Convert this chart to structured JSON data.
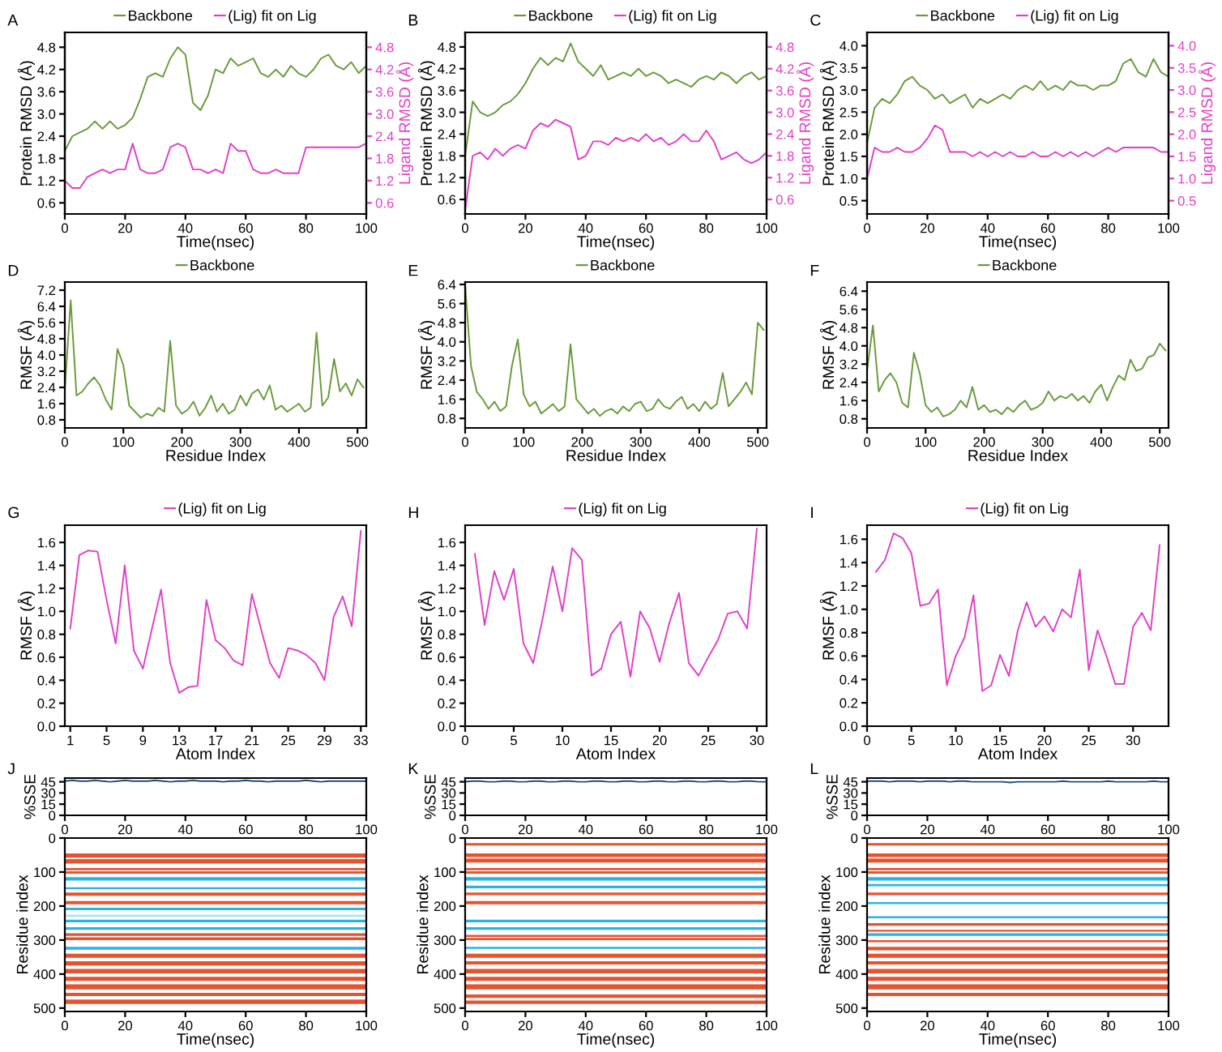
{
  "chart_data": [
    {
      "type": "line",
      "annotations": [
        "A"
      ],
      "xlabel": "Time(nsec)",
      "ylabel": "Protein RMSD (Å)",
      "y2label": "Ligand RMSD (Å)",
      "legend": "top",
      "xlim": [
        0,
        100
      ],
      "xticks": [
        0,
        20,
        40,
        60,
        80,
        100
      ],
      "ylim": [
        0.3,
        5.2
      ],
      "yticks": [
        0.6,
        1.2,
        1.8,
        2.4,
        {
          "value": 3,
          "label": "3.0"
        },
        3.6,
        4.2,
        4.8
      ],
      "y2lim": [
        0.3,
        5.2
      ],
      "y2ticks": [
        0.6,
        1.2,
        1.8,
        2.4,
        {
          "value": 3,
          "label": "3.0"
        },
        3.6,
        4.2,
        4.8
      ],
      "x": [
        0,
        2.5,
        5,
        7.5,
        10,
        12.5,
        15,
        17.5,
        20,
        22.5,
        25,
        27.5,
        30,
        32.5,
        35,
        37.5,
        40,
        42.5,
        45,
        47.5,
        50,
        52.5,
        55,
        57.5,
        60,
        62.5,
        65,
        67.5,
        70,
        72.5,
        75,
        77.5,
        80,
        82.5,
        85,
        87.5,
        90,
        92.5,
        95,
        97.5,
        100
      ],
      "series": [
        {
          "name": "Backbone",
          "color": "#6a9a3a",
          "values": [
            2.0,
            2.4,
            2.5,
            2.6,
            2.8,
            2.6,
            2.8,
            2.6,
            2.7,
            2.9,
            3.4,
            4.0,
            4.1,
            4.0,
            4.5,
            4.8,
            4.6,
            3.3,
            3.1,
            3.5,
            4.2,
            4.1,
            4.5,
            4.3,
            4.4,
            4.5,
            4.1,
            4.0,
            4.2,
            4.0,
            4.3,
            4.1,
            4.0,
            4.2,
            4.5,
            4.6,
            4.3,
            4.2,
            4.4,
            4.1,
            4.3
          ]
        },
        {
          "name": "(Lig) fit on Lig",
          "color": "#e040c8",
          "axis": "y2",
          "values": [
            1.2,
            1.0,
            1.0,
            1.3,
            1.4,
            1.5,
            1.4,
            1.5,
            1.5,
            2.2,
            1.5,
            1.4,
            1.4,
            1.5,
            2.1,
            2.2,
            2.1,
            1.5,
            1.5,
            1.4,
            1.5,
            1.4,
            2.2,
            2.0,
            2.0,
            1.5,
            1.4,
            1.4,
            1.5,
            1.4,
            1.4,
            1.4,
            2.1,
            2.1,
            2.1,
            2.1,
            2.1,
            2.1,
            2.1,
            2.1,
            2.2
          ]
        }
      ]
    },
    {
      "type": "line",
      "annotations": [
        "B"
      ],
      "xlabel": "Time(nsec)",
      "ylabel": "Protein RMSD (Å)",
      "y2label": "Ligand RMSD (Å)",
      "legend": "top",
      "xlim": [
        0,
        100
      ],
      "xticks": [
        0,
        20,
        40,
        60,
        80,
        100
      ],
      "ylim": [
        0.2,
        5.2
      ],
      "yticks": [
        0.6,
        1.2,
        1.8,
        2.4,
        {
          "value": 3,
          "label": "3.0"
        },
        3.6,
        4.2,
        4.8
      ],
      "y2lim": [
        0.2,
        5.2
      ],
      "y2ticks": [
        0.6,
        1.2,
        1.8,
        2.4,
        {
          "value": 3,
          "label": "3.0"
        },
        3.6,
        4.2,
        4.8
      ],
      "x": [
        0,
        2.5,
        5,
        7.5,
        10,
        12.5,
        15,
        17.5,
        20,
        22.5,
        25,
        27.5,
        30,
        32.5,
        35,
        37.5,
        40,
        42.5,
        45,
        47.5,
        50,
        52.5,
        55,
        57.5,
        60,
        62.5,
        65,
        67.5,
        70,
        72.5,
        75,
        77.5,
        80,
        82.5,
        85,
        87.5,
        90,
        92.5,
        95,
        97.5,
        100
      ],
      "series": [
        {
          "name": "Backbone",
          "color": "#6a9a3a",
          "values": [
            1.8,
            3.3,
            3.0,
            2.9,
            3.0,
            3.2,
            3.3,
            3.5,
            3.8,
            4.2,
            4.5,
            4.3,
            4.5,
            4.4,
            4.9,
            4.4,
            4.2,
            4.0,
            4.3,
            3.9,
            4.0,
            4.1,
            4.0,
            4.2,
            4.0,
            4.1,
            4.0,
            3.8,
            3.9,
            3.8,
            3.7,
            3.9,
            4.0,
            3.9,
            4.1,
            4.0,
            3.8,
            4.0,
            4.1,
            3.9,
            4.0
          ]
        },
        {
          "name": "(Lig) fit on Lig",
          "color": "#e040c8",
          "axis": "y2",
          "values": [
            0.3,
            1.8,
            1.9,
            1.7,
            2.0,
            1.8,
            2.0,
            2.1,
            2.0,
            2.5,
            2.7,
            2.6,
            2.8,
            2.7,
            2.6,
            1.7,
            1.8,
            2.2,
            2.2,
            2.1,
            2.3,
            2.2,
            2.3,
            2.2,
            2.4,
            2.2,
            2.3,
            2.1,
            2.2,
            2.4,
            2.2,
            2.2,
            2.5,
            2.2,
            1.7,
            1.8,
            1.9,
            1.7,
            1.6,
            1.7,
            1.9
          ]
        }
      ]
    },
    {
      "type": "line",
      "annotations": [
        "C"
      ],
      "xlabel": "Time(nsec)",
      "ylabel": "Protein RMSD (Å)",
      "y2label": "Ligand RMSD (Å)",
      "legend": "top",
      "xlim": [
        0,
        100
      ],
      "xticks": [
        0,
        20,
        40,
        60,
        80,
        100
      ],
      "ylim": [
        0.2,
        4.3
      ],
      "yticks": [
        0.5,
        {
          "value": 1,
          "label": "1.0"
        },
        1.5,
        {
          "value": 2,
          "label": "2.0"
        },
        2.5,
        {
          "value": 3,
          "label": "3.0"
        },
        3.5,
        {
          "value": 4,
          "label": "4.0"
        }
      ],
      "y2lim": [
        0.2,
        4.3
      ],
      "y2ticks": [
        0.5,
        {
          "value": 1,
          "label": "1.0"
        },
        1.5,
        {
          "value": 2,
          "label": "2.0"
        },
        2.5,
        {
          "value": 3,
          "label": "3.0"
        },
        3.5,
        {
          "value": 4,
          "label": "4.0"
        }
      ],
      "x": [
        0,
        2.5,
        5,
        7.5,
        10,
        12.5,
        15,
        17.5,
        20,
        22.5,
        25,
        27.5,
        30,
        32.5,
        35,
        37.5,
        40,
        42.5,
        45,
        47.5,
        50,
        52.5,
        55,
        57.5,
        60,
        62.5,
        65,
        67.5,
        70,
        72.5,
        75,
        77.5,
        80,
        82.5,
        85,
        87.5,
        90,
        92.5,
        95,
        97.5,
        100
      ],
      "series": [
        {
          "name": "Backbone",
          "color": "#6a9a3a",
          "values": [
            1.8,
            2.6,
            2.8,
            2.7,
            2.9,
            3.2,
            3.3,
            3.1,
            3.0,
            2.8,
            2.9,
            2.7,
            2.8,
            2.9,
            2.6,
            2.8,
            2.7,
            2.8,
            2.9,
            2.8,
            3.0,
            3.1,
            3.0,
            3.2,
            3.0,
            3.1,
            3.0,
            3.2,
            3.1,
            3.1,
            3.0,
            3.1,
            3.1,
            3.2,
            3.6,
            3.7,
            3.4,
            3.3,
            3.7,
            3.4,
            3.3
          ]
        },
        {
          "name": "(Lig) fit on Lig",
          "color": "#e040c8",
          "axis": "y2",
          "values": [
            1.0,
            1.7,
            1.6,
            1.6,
            1.7,
            1.6,
            1.6,
            1.7,
            1.9,
            2.2,
            2.1,
            1.6,
            1.6,
            1.6,
            1.5,
            1.6,
            1.5,
            1.6,
            1.5,
            1.6,
            1.5,
            1.5,
            1.6,
            1.5,
            1.5,
            1.6,
            1.5,
            1.6,
            1.5,
            1.6,
            1.5,
            1.6,
            1.7,
            1.6,
            1.7,
            1.7,
            1.7,
            1.7,
            1.7,
            1.6,
            1.6
          ]
        }
      ]
    },
    {
      "type": "line",
      "annotations": [
        "D"
      ],
      "xlabel": "Residue Index",
      "ylabel": "RMSF (Å)",
      "legend": "top",
      "xlim": [
        0,
        515
      ],
      "xticks": [
        0,
        100,
        200,
        300,
        400,
        500
      ],
      "ylim": [
        0.4,
        7.6
      ],
      "yticks": [
        0.8,
        1.6,
        2.4,
        3.2,
        {
          "value": 4,
          "label": "4.0"
        },
        4.8,
        5.6,
        6.4,
        7.2
      ],
      "x": [
        0,
        10,
        20,
        30,
        40,
        50,
        60,
        70,
        80,
        90,
        100,
        110,
        120,
        130,
        140,
        150,
        160,
        170,
        180,
        190,
        200,
        210,
        220,
        230,
        240,
        250,
        260,
        270,
        280,
        290,
        300,
        310,
        320,
        330,
        340,
        350,
        360,
        370,
        380,
        390,
        400,
        410,
        420,
        430,
        440,
        450,
        460,
        470,
        480,
        490,
        500,
        510
      ],
      "series": [
        {
          "name": "Backbone",
          "color": "#6a9a3a",
          "values": [
            2.3,
            6.7,
            2.0,
            2.2,
            2.6,
            2.9,
            2.5,
            1.8,
            1.3,
            4.3,
            3.5,
            1.5,
            1.2,
            0.9,
            1.1,
            1.0,
            1.4,
            1.2,
            4.7,
            1.5,
            1.1,
            1.3,
            1.7,
            1.0,
            1.4,
            2.0,
            1.2,
            1.6,
            1.1,
            1.3,
            2.0,
            1.5,
            2.1,
            2.3,
            1.8,
            2.5,
            1.3,
            1.5,
            1.2,
            1.4,
            1.6,
            1.2,
            1.4,
            5.1,
            1.5,
            1.9,
            3.8,
            2.2,
            2.6,
            2.0,
            2.8,
            2.4
          ]
        }
      ]
    },
    {
      "type": "line",
      "annotations": [
        "E"
      ],
      "xlabel": "Residue Index",
      "ylabel": "RMSF (Å)",
      "legend": "top",
      "xlim": [
        0,
        515
      ],
      "xticks": [
        0,
        100,
        200,
        300,
        400,
        500
      ],
      "ylim": [
        0.4,
        6.5
      ],
      "yticks": [
        0.8,
        1.6,
        2.4,
        3.2,
        {
          "value": 4,
          "label": "4.0"
        },
        4.8,
        5.6,
        6.4
      ],
      "x": [
        0,
        10,
        20,
        30,
        40,
        50,
        60,
        70,
        80,
        90,
        100,
        110,
        120,
        130,
        140,
        150,
        160,
        170,
        180,
        190,
        200,
        210,
        220,
        230,
        240,
        250,
        260,
        270,
        280,
        290,
        300,
        310,
        320,
        330,
        340,
        350,
        360,
        370,
        380,
        390,
        400,
        410,
        420,
        430,
        440,
        450,
        460,
        470,
        480,
        490,
        500,
        510
      ],
      "series": [
        {
          "name": "Backbone",
          "color": "#6a9a3a",
          "values": [
            6.4,
            3.0,
            1.9,
            1.6,
            1.2,
            1.5,
            1.1,
            1.3,
            3.0,
            4.1,
            1.8,
            1.3,
            1.5,
            1.0,
            1.2,
            1.4,
            1.1,
            1.3,
            3.9,
            1.6,
            1.3,
            1.0,
            1.2,
            0.9,
            1.1,
            1.2,
            1.0,
            1.3,
            1.1,
            1.4,
            1.5,
            1.1,
            1.2,
            1.6,
            1.3,
            1.2,
            1.5,
            1.7,
            1.2,
            1.4,
            1.1,
            1.5,
            1.2,
            1.4,
            2.7,
            1.3,
            1.6,
            1.9,
            2.3,
            1.8,
            4.8,
            4.5
          ]
        }
      ]
    },
    {
      "type": "line",
      "annotations": [
        "F"
      ],
      "xlabel": "Residue Index",
      "ylabel": "RMSF (Å)",
      "legend": "top",
      "xlim": [
        0,
        515
      ],
      "xticks": [
        0,
        100,
        200,
        300,
        400,
        500
      ],
      "ylim": [
        0.4,
        6.8
      ],
      "yticks": [
        0.8,
        1.6,
        2.4,
        3.2,
        {
          "value": 4,
          "label": "4.0"
        },
        4.8,
        5.6,
        6.4
      ],
      "x": [
        0,
        10,
        20,
        30,
        40,
        50,
        60,
        70,
        80,
        90,
        100,
        110,
        120,
        130,
        140,
        150,
        160,
        170,
        180,
        190,
        200,
        210,
        220,
        230,
        240,
        250,
        260,
        270,
        280,
        290,
        300,
        310,
        320,
        330,
        340,
        350,
        360,
        370,
        380,
        390,
        400,
        410,
        420,
        430,
        440,
        450,
        460,
        470,
        480,
        490,
        500,
        510
      ],
      "series": [
        {
          "name": "Backbone",
          "color": "#6a9a3a",
          "values": [
            2.9,
            4.9,
            2.0,
            2.5,
            2.8,
            2.4,
            1.5,
            1.3,
            3.7,
            2.8,
            1.4,
            1.1,
            1.3,
            0.9,
            1.0,
            1.2,
            1.6,
            1.3,
            2.2,
            1.2,
            1.4,
            1.1,
            1.2,
            1.0,
            1.3,
            1.1,
            1.4,
            1.6,
            1.2,
            1.3,
            1.5,
            2.0,
            1.6,
            1.8,
            1.7,
            1.9,
            1.6,
            1.8,
            1.5,
            2.0,
            2.3,
            1.6,
            2.2,
            2.7,
            2.5,
            3.4,
            2.9,
            3.0,
            3.5,
            3.6,
            4.1,
            3.8
          ]
        }
      ]
    },
    {
      "type": "line",
      "annotations": [
        "G"
      ],
      "xlabel": "Atom Index",
      "ylabel": "RMSF (Å)",
      "legend": "top",
      "xlim": [
        0.4,
        33.6
      ],
      "xticks": [
        1,
        5,
        9,
        13,
        17,
        21,
        25,
        29,
        33
      ],
      "ylim": [
        0.0,
        1.75
      ],
      "yticks": [
        {
          "value": 0,
          "label": "0.0"
        },
        0.2,
        0.4,
        0.6,
        0.8,
        {
          "value": 1,
          "label": "1.0"
        },
        1.2,
        1.4,
        1.6
      ],
      "x": [
        1,
        2,
        3,
        4,
        5,
        6,
        7,
        8,
        9,
        10,
        11,
        12,
        13,
        14,
        15,
        16,
        17,
        18,
        19,
        20,
        21,
        22,
        23,
        24,
        25,
        26,
        27,
        28,
        29,
        30,
        31,
        32,
        33
      ],
      "series": [
        {
          "name": "(Lig) fit on Lig",
          "color": "#e040c8",
          "values": [
            0.85,
            1.49,
            1.53,
            1.52,
            1.1,
            0.72,
            1.4,
            0.66,
            0.5,
            0.85,
            1.19,
            0.55,
            0.29,
            0.34,
            0.35,
            1.1,
            0.75,
            0.68,
            0.57,
            0.53,
            1.15,
            0.85,
            0.55,
            0.42,
            0.68,
            0.66,
            0.62,
            0.55,
            0.4,
            0.95,
            1.13,
            0.87,
            1.7
          ]
        }
      ]
    },
    {
      "type": "line",
      "annotations": [
        "H"
      ],
      "xlabel": "Atom Index",
      "ylabel": "RMSF (Å)",
      "legend": "top",
      "xlim": [
        0,
        31
      ],
      "xticks": [
        0,
        5,
        10,
        15,
        20,
        25,
        30
      ],
      "ylim": [
        0.0,
        1.75
      ],
      "yticks": [
        {
          "value": 0,
          "label": "0.0"
        },
        0.2,
        0.4,
        0.6,
        0.8,
        {
          "value": 1,
          "label": "1.0"
        },
        1.2,
        1.4,
        1.6
      ],
      "x": [
        1,
        2,
        3,
        4,
        5,
        6,
        7,
        8,
        9,
        10,
        11,
        12,
        13,
        14,
        15,
        16,
        17,
        18,
        19,
        20,
        21,
        22,
        23,
        24,
        25,
        26,
        27,
        28,
        29,
        30
      ],
      "series": [
        {
          "name": "(Lig) fit on Lig",
          "color": "#e040c8",
          "values": [
            1.5,
            0.88,
            1.35,
            1.1,
            1.37,
            0.72,
            0.55,
            0.95,
            1.39,
            1.0,
            1.55,
            1.45,
            0.44,
            0.5,
            0.8,
            0.91,
            0.43,
            1.0,
            0.85,
            0.56,
            0.9,
            1.16,
            0.55,
            0.44,
            0.6,
            0.75,
            0.98,
            1.0,
            0.85,
            1.72
          ]
        }
      ]
    },
    {
      "type": "line",
      "annotations": [
        "I"
      ],
      "xlabel": "Atom Index",
      "ylabel": "RMSF (Å)",
      "legend": "top",
      "xlim": [
        0,
        34
      ],
      "xticks": [
        0,
        5,
        10,
        15,
        20,
        25,
        30
      ],
      "ylim": [
        0.0,
        1.72
      ],
      "yticks": [
        {
          "value": 0,
          "label": "0.0"
        },
        0.2,
        0.4,
        0.6,
        0.8,
        {
          "value": 1,
          "label": "1.0"
        },
        1.2,
        1.4,
        1.6
      ],
      "x": [
        1,
        2,
        3,
        4,
        5,
        6,
        7,
        8,
        9,
        10,
        11,
        12,
        13,
        14,
        15,
        16,
        17,
        18,
        19,
        20,
        21,
        22,
        23,
        24,
        25,
        26,
        27,
        28,
        29,
        30,
        31,
        32,
        33
      ],
      "series": [
        {
          "name": "(Lig) fit on Lig",
          "color": "#e040c8",
          "values": [
            1.32,
            1.42,
            1.65,
            1.61,
            1.48,
            1.03,
            1.05,
            1.17,
            0.35,
            0.6,
            0.76,
            1.12,
            0.3,
            0.35,
            0.61,
            0.43,
            0.82,
            1.06,
            0.85,
            0.94,
            0.81,
            1.0,
            0.93,
            1.34,
            0.48,
            0.82,
            0.6,
            0.36,
            0.36,
            0.85,
            0.97,
            0.82,
            1.55
          ]
        }
      ]
    },
    {
      "type": "line",
      "annotations": [
        "J"
      ],
      "ylabel": "%SSE",
      "xlim": [
        0,
        100
      ],
      "xticks": [
        0,
        20,
        40,
        60,
        80,
        100
      ],
      "ylim": [
        0,
        50
      ],
      "yticks": [
        0,
        15,
        30,
        45
      ],
      "x": [
        0,
        2.5,
        5,
        7.5,
        10,
        12.5,
        15,
        17.5,
        20,
        22.5,
        25,
        27.5,
        30,
        32.5,
        35,
        37.5,
        40,
        42.5,
        45,
        47.5,
        50,
        52.5,
        55,
        57.5,
        60,
        62.5,
        65,
        67.5,
        70,
        72.5,
        75,
        77.5,
        80,
        82.5,
        85,
        87.5,
        90,
        92.5,
        95,
        97.5,
        100
      ],
      "series": [
        {
          "color": "#1f4e79",
          "values": [
            46,
            47,
            46,
            46,
            47,
            46,
            45,
            46,
            47,
            46,
            46,
            46,
            47,
            46,
            45,
            46,
            46,
            47,
            46,
            46,
            46,
            45,
            46,
            46,
            47,
            46,
            46,
            45,
            46,
            46,
            46,
            46,
            47,
            46,
            45,
            46,
            46,
            46,
            46,
            46,
            46
          ]
        }
      ]
    },
    {
      "type": "line",
      "xlabel": "Time(nsec)",
      "ylabel": "Residue index",
      "xlim": [
        0,
        100
      ],
      "xticks": [
        0,
        20,
        40,
        60,
        80,
        100
      ],
      "ylim": [
        510,
        0
      ],
      "yticks": [
        0,
        100,
        200,
        300,
        400,
        500
      ],
      "bands": [
        {
          "axis": "y",
          "from": 45,
          "to": 58,
          "color": "#e8532f"
        },
        {
          "axis": "y",
          "from": 62,
          "to": 75,
          "color": "#e8532f"
        },
        {
          "axis": "y",
          "from": 88,
          "to": 95,
          "color": "#e8532f"
        },
        {
          "axis": "y",
          "from": 98,
          "to": 105,
          "color": "#e8532f"
        },
        {
          "axis": "y",
          "from": 160,
          "to": 170,
          "color": "#e8532f"
        },
        {
          "axis": "y",
          "from": 185,
          "to": 195,
          "color": "#e8532f"
        },
        {
          "axis": "y",
          "from": 280,
          "to": 288,
          "color": "#e8532f"
        },
        {
          "axis": "y",
          "from": 292,
          "to": 300,
          "color": "#e8532f"
        },
        {
          "axis": "y",
          "from": 340,
          "to": 352,
          "color": "#e8532f"
        },
        {
          "axis": "y",
          "from": 362,
          "to": 375,
          "color": "#e8532f"
        },
        {
          "axis": "y",
          "from": 385,
          "to": 398,
          "color": "#e8532f"
        },
        {
          "axis": "y",
          "from": 408,
          "to": 420,
          "color": "#e8532f"
        },
        {
          "axis": "y",
          "from": 430,
          "to": 445,
          "color": "#e8532f"
        },
        {
          "axis": "y",
          "from": 455,
          "to": 465,
          "color": "#e8532f"
        },
        {
          "axis": "y",
          "from": 475,
          "to": 488,
          "color": "#e8532f"
        },
        {
          "axis": "y",
          "from": 115,
          "to": 125,
          "color": "#2ab5e0"
        },
        {
          "axis": "y",
          "from": 145,
          "to": 150,
          "color": "#2ab5e0"
        },
        {
          "axis": "y",
          "from": 205,
          "to": 212,
          "color": "#2ab5e0"
        },
        {
          "axis": "y",
          "from": 225,
          "to": 232,
          "color": "#a8e4f4"
        },
        {
          "axis": "y",
          "from": 240,
          "to": 248,
          "color": "#2ab5e0"
        },
        {
          "axis": "y",
          "from": 262,
          "to": 270,
          "color": "#2ab5e0"
        },
        {
          "axis": "y",
          "from": 320,
          "to": 328,
          "color": "#2ab5e0"
        }
      ]
    },
    {
      "type": "line",
      "annotations": [
        "K"
      ],
      "ylabel": "%SSE",
      "xlim": [
        0,
        100
      ],
      "xticks": [
        0,
        20,
        40,
        60,
        80,
        100
      ],
      "ylim": [
        0,
        50
      ],
      "yticks": [
        0,
        15,
        30,
        45
      ],
      "x": [
        0,
        2.5,
        5,
        7.5,
        10,
        12.5,
        15,
        17.5,
        20,
        22.5,
        25,
        27.5,
        30,
        32.5,
        35,
        37.5,
        40,
        42.5,
        45,
        47.5,
        50,
        52.5,
        55,
        57.5,
        60,
        62.5,
        65,
        67.5,
        70,
        72.5,
        75,
        77.5,
        80,
        82.5,
        85,
        87.5,
        90,
        92.5,
        95,
        97.5,
        100
      ],
      "series": [
        {
          "color": "#1f4e79",
          "values": [
            45,
            46,
            46,
            45,
            45,
            46,
            46,
            45,
            45,
            46,
            46,
            45,
            45,
            46,
            46,
            45,
            45,
            46,
            46,
            45,
            45,
            46,
            46,
            45,
            45,
            46,
            46,
            45,
            45,
            46,
            46,
            45,
            45,
            46,
            46,
            45,
            45,
            46,
            46,
            45,
            45
          ]
        }
      ]
    },
    {
      "type": "line",
      "xlabel": "Time(nsec)",
      "ylabel": "Residue index",
      "xlim": [
        0,
        100
      ],
      "xticks": [
        0,
        20,
        40,
        60,
        80,
        100
      ],
      "ylim": [
        510,
        0
      ],
      "yticks": [
        0,
        100,
        200,
        300,
        400,
        500
      ],
      "bands": [
        {
          "axis": "y",
          "from": 15,
          "to": 22,
          "color": "#e8532f"
        },
        {
          "axis": "y",
          "from": 45,
          "to": 56,
          "color": "#e8532f"
        },
        {
          "axis": "y",
          "from": 60,
          "to": 72,
          "color": "#e8532f"
        },
        {
          "axis": "y",
          "from": 88,
          "to": 95,
          "color": "#e8532f"
        },
        {
          "axis": "y",
          "from": 98,
          "to": 105,
          "color": "#e8532f"
        },
        {
          "axis": "y",
          "from": 160,
          "to": 168,
          "color": "#e8532f"
        },
        {
          "axis": "y",
          "from": 185,
          "to": 195,
          "color": "#e8532f"
        },
        {
          "axis": "y",
          "from": 285,
          "to": 291,
          "color": "#e8532f"
        },
        {
          "axis": "y",
          "from": 294,
          "to": 300,
          "color": "#e8532f"
        },
        {
          "axis": "y",
          "from": 340,
          "to": 352,
          "color": "#e8532f"
        },
        {
          "axis": "y",
          "from": 362,
          "to": 372,
          "color": "#e8532f"
        },
        {
          "axis": "y",
          "from": 385,
          "to": 398,
          "color": "#e8532f"
        },
        {
          "axis": "y",
          "from": 408,
          "to": 420,
          "color": "#e8532f"
        },
        {
          "axis": "y",
          "from": 430,
          "to": 445,
          "color": "#e8532f"
        },
        {
          "axis": "y",
          "from": 460,
          "to": 470,
          "color": "#e8532f"
        },
        {
          "axis": "y",
          "from": 478,
          "to": 488,
          "color": "#e8532f"
        },
        {
          "axis": "y",
          "from": 115,
          "to": 125,
          "color": "#2ab5e0"
        },
        {
          "axis": "y",
          "from": 140,
          "to": 148,
          "color": "#2ab5e0"
        },
        {
          "axis": "y",
          "from": 240,
          "to": 248,
          "color": "#2ab5e0"
        },
        {
          "axis": "y",
          "from": 262,
          "to": 270,
          "color": "#2ab5e0"
        },
        {
          "axis": "y",
          "from": 320,
          "to": 326,
          "color": "#2ab5e0"
        }
      ]
    },
    {
      "type": "line",
      "annotations": [
        "L"
      ],
      "ylabel": "%SSE",
      "xlim": [
        0,
        100
      ],
      "xticks": [
        0,
        20,
        40,
        60,
        80,
        100
      ],
      "ylim": [
        0,
        50
      ],
      "yticks": [
        0,
        15,
        30,
        45
      ],
      "x": [
        0,
        2.5,
        5,
        7.5,
        10,
        12.5,
        15,
        17.5,
        20,
        22.5,
        25,
        27.5,
        30,
        32.5,
        35,
        37.5,
        40,
        42.5,
        45,
        47.5,
        50,
        52.5,
        55,
        57.5,
        60,
        62.5,
        65,
        67.5,
        70,
        72.5,
        75,
        77.5,
        80,
        82.5,
        85,
        87.5,
        90,
        92.5,
        95,
        97.5,
        100
      ],
      "series": [
        {
          "color": "#1f4e79",
          "values": [
            46,
            46,
            46,
            45,
            46,
            46,
            46,
            45,
            46,
            46,
            46,
            45,
            46,
            46,
            45,
            45,
            45,
            45,
            45,
            44,
            45,
            45,
            45,
            45,
            45,
            45,
            46,
            45,
            45,
            45,
            45,
            45,
            46,
            45,
            45,
            45,
            45,
            45,
            46,
            45,
            45
          ]
        }
      ]
    },
    {
      "type": "line",
      "xlabel": "Time(nsec)",
      "ylabel": "Residue index",
      "xlim": [
        0,
        100
      ],
      "xticks": [
        0,
        20,
        40,
        60,
        80,
        100
      ],
      "ylim": [
        510,
        0
      ],
      "yticks": [
        0,
        100,
        200,
        300,
        400,
        500
      ],
      "bands": [
        {
          "axis": "y",
          "from": 15,
          "to": 22,
          "color": "#e8532f"
        },
        {
          "axis": "y",
          "from": 45,
          "to": 56,
          "color": "#e8532f"
        },
        {
          "axis": "y",
          "from": 60,
          "to": 72,
          "color": "#e8532f"
        },
        {
          "axis": "y",
          "from": 88,
          "to": 95,
          "color": "#e8532f"
        },
        {
          "axis": "y",
          "from": 98,
          "to": 105,
          "color": "#e8532f"
        },
        {
          "axis": "y",
          "from": 160,
          "to": 168,
          "color": "#e8532f"
        },
        {
          "axis": "y",
          "from": 250,
          "to": 258,
          "color": "#e8532f"
        },
        {
          "axis": "y",
          "from": 270,
          "to": 275,
          "color": "#e8532f"
        },
        {
          "axis": "y",
          "from": 300,
          "to": 306,
          "color": "#e8532f"
        },
        {
          "axis": "y",
          "from": 320,
          "to": 330,
          "color": "#e8532f"
        },
        {
          "axis": "y",
          "from": 340,
          "to": 352,
          "color": "#e8532f"
        },
        {
          "axis": "y",
          "from": 362,
          "to": 372,
          "color": "#e8532f"
        },
        {
          "axis": "y",
          "from": 385,
          "to": 398,
          "color": "#e8532f"
        },
        {
          "axis": "y",
          "from": 408,
          "to": 420,
          "color": "#e8532f"
        },
        {
          "axis": "y",
          "from": 430,
          "to": 445,
          "color": "#e8532f"
        },
        {
          "axis": "y",
          "from": 455,
          "to": 465,
          "color": "#e8532f"
        },
        {
          "axis": "y",
          "from": 115,
          "to": 125,
          "color": "#2ab5e0"
        },
        {
          "axis": "y",
          "from": 135,
          "to": 142,
          "color": "#2ab5e0"
        },
        {
          "axis": "y",
          "from": 188,
          "to": 194,
          "color": "#2ab5e0"
        },
        {
          "axis": "y",
          "from": 230,
          "to": 236,
          "color": "#2ab5e0"
        },
        {
          "axis": "y",
          "from": 280,
          "to": 288,
          "color": "#2ab5e0"
        }
      ]
    }
  ]
}
